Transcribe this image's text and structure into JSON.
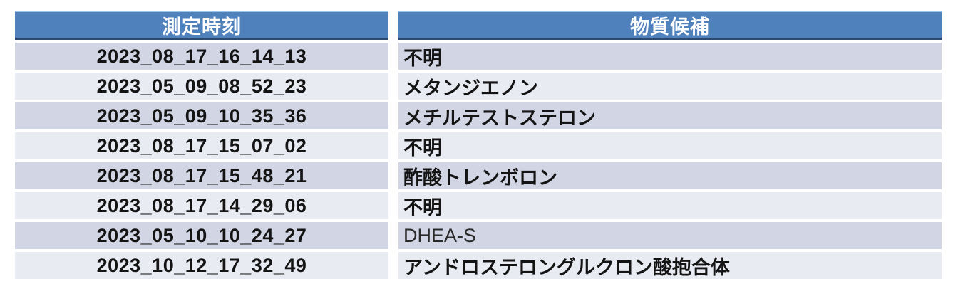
{
  "table": {
    "columns": [
      {
        "label": "測定時刻"
      },
      {
        "label": "物質候補"
      }
    ],
    "rows": [
      {
        "time": "2023_08_17_16_14_13",
        "substance": "不明"
      },
      {
        "time": "2023_05_09_08_52_23",
        "substance": "メタンジエノン"
      },
      {
        "time": "2023_05_09_10_35_36",
        "substance": "メチルテストステロン"
      },
      {
        "time": "2023_08_17_15_07_02",
        "substance": "不明"
      },
      {
        "time": "2023_08_17_15_48_21",
        "substance": "酢酸トレンボロン"
      },
      {
        "time": "2023_08_17_14_29_06",
        "substance": "不明"
      },
      {
        "time": "2023_05_10_10_24_27",
        "substance": "DHEA-S"
      },
      {
        "time": "2023_10_12_17_32_49",
        "substance": "アンドロステロングルクロン酸抱合体"
      }
    ],
    "colors": {
      "header_bg": "#4f81bd",
      "header_text": "#ffffff",
      "header_border_bottom": "#2b4a72",
      "row_dark_bg": "#d2d6e4",
      "row_light_bg": "#e9ebf3",
      "body_text": "#141414",
      "page_background": "#ffffff"
    }
  }
}
